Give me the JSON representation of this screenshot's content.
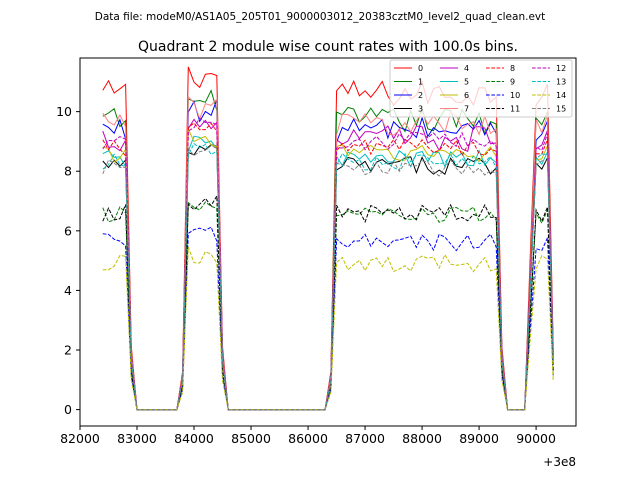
{
  "suptitle": "Data file: modeM0/AS1A05_205T01_9000003012_20383cztM0_level2_quad_clean.evt",
  "chart_data": {
    "type": "line",
    "title": "Quadrant 2 module wise count rates with 100.0s bins.",
    "xlabel": "",
    "ylabel": "",
    "x_offset_label": "+3e8",
    "xlim": [
      82000,
      90700
    ],
    "ylim": [
      -0.55,
      11.8
    ],
    "xticks": [
      82000,
      83000,
      84000,
      85000,
      86000,
      87000,
      88000,
      89000,
      90000
    ],
    "xtick_labels": [
      "82000",
      "83000",
      "84000",
      "85000",
      "86000",
      "87000",
      "88000",
      "89000",
      "90000"
    ],
    "yticks": [
      0,
      2,
      4,
      6,
      8,
      10
    ],
    "ytick_labels": [
      "0",
      "2",
      "4",
      "6",
      "8",
      "10"
    ],
    "legend_location": "top-right",
    "segments": [
      {
        "x": [
          82400,
          82500,
          82600,
          82700,
          82800,
          82900
        ]
      },
      {
        "x": [
          83800,
          83900,
          84000,
          84100,
          84200,
          84300,
          84400,
          84500
        ]
      },
      {
        "x": [
          86400,
          86500,
          86600,
          86700,
          86800,
          86900,
          87000,
          87100,
          87200,
          87300,
          87400,
          87500,
          87600,
          87700,
          87800,
          87900,
          88000,
          88100,
          88200,
          88300,
          88400,
          88500,
          88600,
          88700,
          88800,
          88900,
          89000,
          89100,
          89200,
          89300,
          89400
        ]
      },
      {
        "x": [
          89900,
          90000,
          90100,
          90200,
          90300
        ]
      }
    ],
    "series": [
      {
        "name": "0",
        "color": "#ff0000",
        "dash": "solid",
        "level": 10.6
      },
      {
        "name": "1",
        "color": "#008000",
        "dash": "solid",
        "level": 9.7
      },
      {
        "name": "2",
        "color": "#0000ff",
        "dash": "solid",
        "level": 9.4
      },
      {
        "name": "3",
        "color": "#000000",
        "dash": "solid",
        "level": 8.2
      },
      {
        "name": "4",
        "color": "#bf00bf",
        "dash": "solid",
        "level": 9.1
      },
      {
        "name": "5",
        "color": "#00bfbf",
        "dash": "solid",
        "level": 8.4
      },
      {
        "name": "6",
        "color": "#bfbf00",
        "dash": "solid",
        "level": 8.6
      },
      {
        "name": "7",
        "color": "#ff8080",
        "dash": "solid",
        "level": 9.6
      },
      {
        "name": "8",
        "color": "#ff0000",
        "dash": "dashed",
        "level": 8.8
      },
      {
        "name": "9",
        "color": "#008000",
        "dash": "dashed",
        "level": 6.5
      },
      {
        "name": "10",
        "color": "#0000ff",
        "dash": "dashed",
        "level": 5.6
      },
      {
        "name": "11",
        "color": "#000000",
        "dash": "dashed",
        "level": 6.6
      },
      {
        "name": "12",
        "color": "#bf00bf",
        "dash": "dashed",
        "level": 9.0
      },
      {
        "name": "13",
        "color": "#00bfbf",
        "dash": "dashed",
        "level": 8.3
      },
      {
        "name": "14",
        "color": "#bfbf00",
        "dash": "dashed",
        "level": 4.9
      },
      {
        "name": "15",
        "color": "#808080",
        "dash": "dashed",
        "level": 8.1
      }
    ]
  }
}
